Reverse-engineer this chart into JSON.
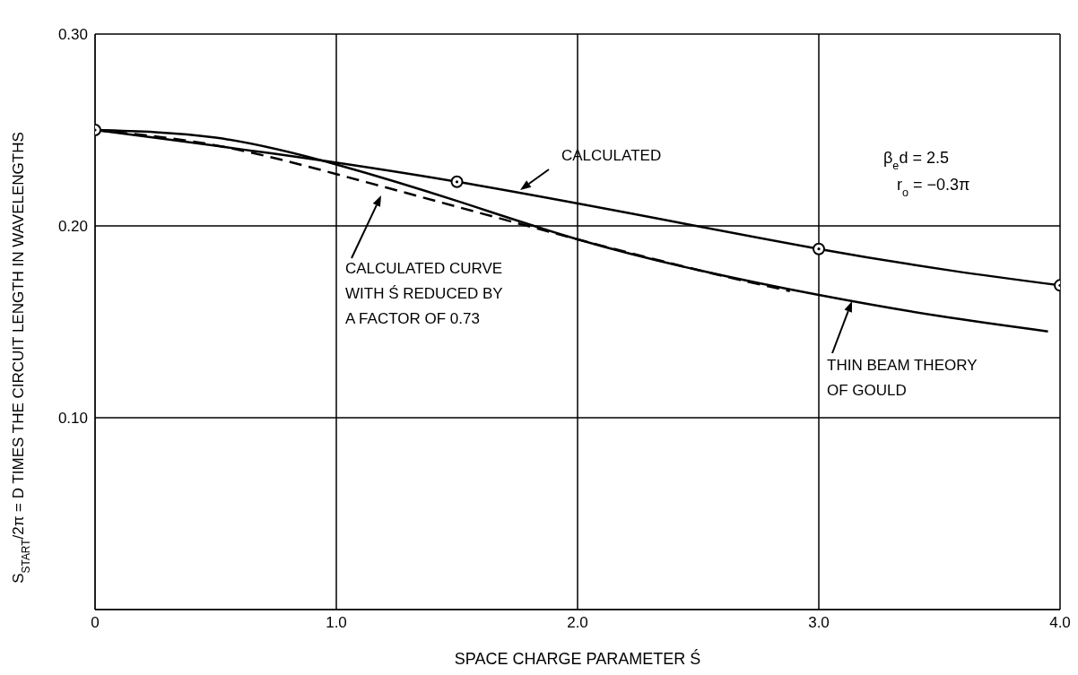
{
  "chart_data": {
    "type": "line",
    "xlabel": "SPACE CHARGE PARAMETER Ś",
    "ylabel": "S$_{START}$/2π = D TIMES THE CIRCUIT LENGTH IN WAVELENGTHS",
    "xlim": [
      0,
      4
    ],
    "xticks": [
      0,
      {
        "value": 1,
        "label": "1.0"
      },
      {
        "value": 2,
        "label": "2.0"
      },
      {
        "value": 3,
        "label": "3.0"
      },
      {
        "value": 4,
        "label": "4.0"
      }
    ],
    "ylim": [
      0,
      0.3
    ],
    "yticks": [
      {
        "value": 0,
        "label": null
      },
      {
        "value": 0.1,
        "label": "0.10"
      },
      {
        "value": 0.2,
        "label": "0.20"
      },
      {
        "value": 0.3,
        "label": "0.30"
      }
    ],
    "grid": true,
    "series": [
      {
        "color": "#000000",
        "marker": "circle",
        "line_style": "solid",
        "x": [
          0,
          1.5,
          3,
          4
        ],
        "values": [
          0.25,
          0.223,
          0.188,
          0.169
        ]
      },
      {
        "color": "#000000",
        "marker": "none",
        "line_style": "solid",
        "x": [
          0,
          0.5,
          1,
          1.5,
          2,
          2.5,
          3,
          3.5,
          3.95
        ],
        "values": [
          0.25,
          0.246,
          0.232,
          0.213,
          0.193,
          0.177,
          0.164,
          0.153,
          0.145
        ]
      },
      {
        "color": "#000000",
        "marker": "none",
        "line_style": "dashed",
        "x": [
          0,
          0.5,
          1,
          1.5,
          2,
          2.5,
          2.88
        ],
        "values": [
          0.25,
          0.242,
          0.227,
          0.21,
          0.193,
          0.177,
          0.166
        ]
      }
    ],
    "annotations": [
      "CALCULATED",
      "CALCULATED CURVE\nWITH Ś REDUCED BY\nA FACTOR OF 0.73",
      "THIN BEAM THEORY\nOF GOULD",
      "β$_{e}$d = 2.5",
      "r$_{o}$ = −0.3π"
    ]
  }
}
